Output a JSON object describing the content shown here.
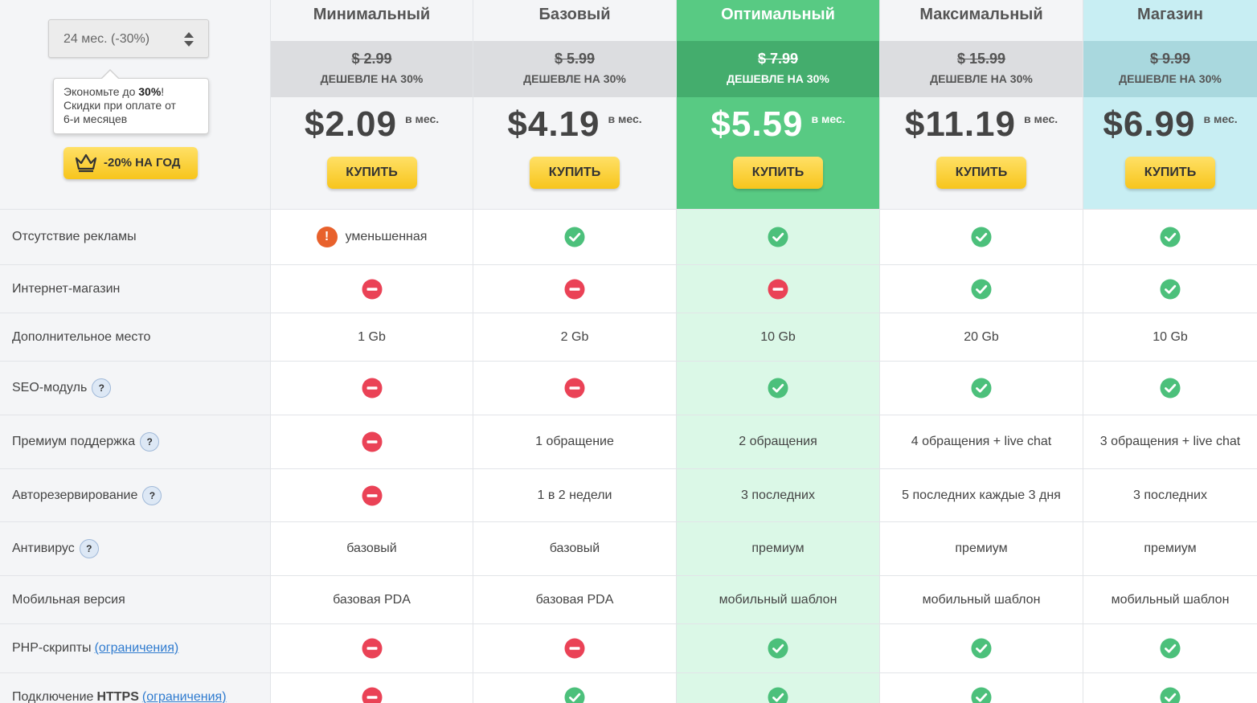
{
  "period": {
    "selected": "24 мес. (-30%)"
  },
  "tooltip": {
    "line1_pre": "Экономьте до ",
    "line1_bold": "30%",
    "line1_post": "!",
    "line2": "Скидки при оплате от",
    "line3": "6-и месяцев"
  },
  "year_button": {
    "label": "-20% НА ГОД"
  },
  "per_month": "в мес.",
  "cheaper_label": "ДЕШЕВЛЕ НА 30%",
  "buy_label": "КУПИТЬ",
  "plans": [
    {
      "name": "Минимальный",
      "old_price": "$ 2.99",
      "price": "$2.09"
    },
    {
      "name": "Базовый",
      "old_price": "$ 5.99",
      "price": "$4.19"
    },
    {
      "name": "Оптимальный",
      "old_price": "$ 7.99",
      "price": "$5.59"
    },
    {
      "name": "Максимальный",
      "old_price": "$ 15.99",
      "price": "$11.19"
    },
    {
      "name": "Магазин",
      "old_price": "$ 9.99",
      "price": "$6.99"
    }
  ],
  "features": [
    {
      "label": "Отсутствие рекламы",
      "help": false,
      "values": [
        "уменьшенная",
        "yes",
        "yes",
        "yes",
        "yes"
      ]
    },
    {
      "label": "Интернет-магазин",
      "help": false,
      "values": [
        "no",
        "no",
        "no",
        "yes",
        "yes"
      ]
    },
    {
      "label": "Дополнительное место",
      "help": false,
      "values": [
        "1 Gb",
        "2 Gb",
        "10 Gb",
        "20 Gb",
        "10 Gb"
      ]
    },
    {
      "label": "SEO-модуль",
      "help": true,
      "values": [
        "no",
        "no",
        "yes",
        "yes",
        "yes"
      ]
    },
    {
      "label": "Премиум поддержка",
      "help": true,
      "values": [
        "no",
        "1 обращение",
        "2 обращения",
        "4 обращения + live chat",
        "3 обращения + live chat"
      ]
    },
    {
      "label": "Авторезервирование",
      "help": true,
      "values": [
        "no",
        "1 в 2 недели",
        "3 последних",
        "5 последних каждые 3 дня",
        "3 последних"
      ]
    },
    {
      "label": "Антивирус",
      "help": true,
      "values": [
        "базовый",
        "базовый",
        "премиум",
        "премиум",
        "премиум"
      ]
    },
    {
      "label": "Мобильная версия",
      "help": false,
      "values": [
        "базовая PDA",
        "базовая PDA",
        "мобильный шаблон",
        "мобильный шаблон",
        "мобильный шаблон"
      ]
    },
    {
      "label": "PHP-скрипты",
      "link": "(ограничения)",
      "values": [
        "no",
        "no",
        "yes",
        "yes",
        "yes"
      ]
    },
    {
      "label": "Подключение",
      "bold": "HTTPS",
      "link": "(ограничения)",
      "values": [
        "no",
        "yes",
        "yes",
        "yes",
        "yes"
      ]
    }
  ],
  "colors": {
    "yes": "#4cc07b",
    "no": "#ea4256",
    "warn": "#e8612c",
    "accent": "#58ca83",
    "button": "#f7c51c"
  }
}
